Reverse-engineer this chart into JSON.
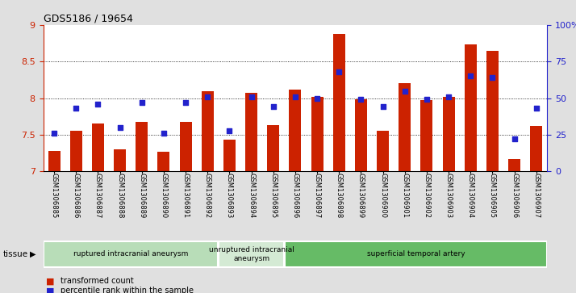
{
  "title": "GDS5186 / 19654",
  "samples": [
    "GSM1306885",
    "GSM1306886",
    "GSM1306887",
    "GSM1306888",
    "GSM1306889",
    "GSM1306890",
    "GSM1306891",
    "GSM1306892",
    "GSM1306893",
    "GSM1306894",
    "GSM1306895",
    "GSM1306896",
    "GSM1306897",
    "GSM1306898",
    "GSM1306899",
    "GSM1306900",
    "GSM1306901",
    "GSM1306902",
    "GSM1306903",
    "GSM1306904",
    "GSM1306905",
    "GSM1306906",
    "GSM1306907"
  ],
  "bar_values": [
    7.28,
    7.55,
    7.65,
    7.3,
    7.68,
    7.27,
    7.68,
    8.1,
    7.43,
    8.07,
    7.63,
    8.12,
    8.02,
    8.88,
    7.98,
    7.55,
    8.2,
    7.97,
    8.02,
    8.73,
    8.65,
    7.17,
    7.62
  ],
  "dot_values": [
    26,
    43,
    46,
    30,
    47,
    26,
    47,
    51,
    28,
    51,
    44,
    51,
    50,
    68,
    49,
    44,
    55,
    49,
    51,
    65,
    64,
    22,
    43
  ],
  "ylim_left": [
    7.0,
    9.0
  ],
  "ylim_right": [
    0,
    100
  ],
  "yticks_left": [
    7.0,
    7.5,
    8.0,
    8.5,
    9.0
  ],
  "ytick_labels_left": [
    "7",
    "7.5",
    "8",
    "8.5",
    "9"
  ],
  "yticks_right": [
    0,
    25,
    50,
    75,
    100
  ],
  "ytick_labels_right": [
    "0",
    "25",
    "50",
    "75",
    "100%"
  ],
  "bar_color": "#cc2200",
  "dot_color": "#2222cc",
  "groups": [
    {
      "label": "ruptured intracranial aneurysm",
      "start": 0,
      "end": 8,
      "color": "#b8ddb8"
    },
    {
      "label": "unruptured intracranial\naneurysm",
      "start": 8,
      "end": 11,
      "color": "#d4ead4"
    },
    {
      "label": "superficial temporal artery",
      "start": 11,
      "end": 23,
      "color": "#66bb66"
    }
  ],
  "tissue_label": "tissue",
  "legend_bar_label": "transformed count",
  "legend_dot_label": "percentile rank within the sample",
  "background_color": "#e0e0e0",
  "plot_bg_color": "#ffffff"
}
